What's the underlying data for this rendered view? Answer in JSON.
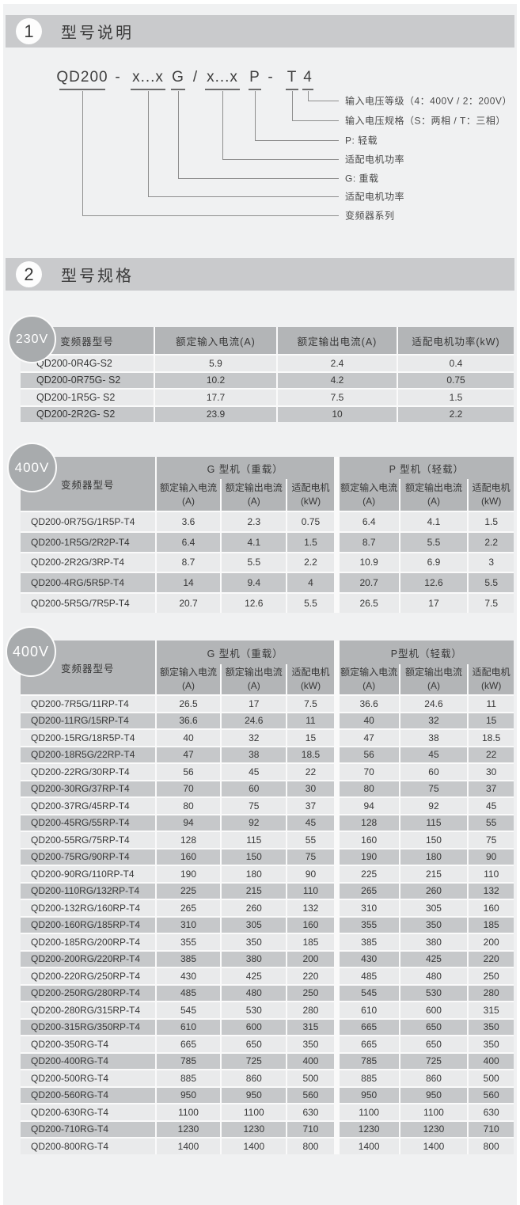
{
  "colors": {
    "background": "#f0f1f2",
    "section_bar": "#c9cacc",
    "table_header": "#b3b5b7",
    "row_light": "#e9eaeb",
    "row_dark": "#c6c8ca",
    "badge": "#a8abad",
    "separator": "#fafafa"
  },
  "sections": {
    "model_description": {
      "number": "1",
      "title": "型号说明"
    },
    "model_specs": {
      "number": "2",
      "title": "型号规格"
    }
  },
  "model_diagram": {
    "tokens": [
      "QD200",
      "-",
      "x...x",
      "G",
      "/",
      "x...x",
      "P",
      "-",
      "T",
      "4"
    ],
    "labels": [
      "输入电压等级（4：400V  /  2：200V）",
      "输入电压规格（S：两相  /  T：三相）",
      "P: 轻载",
      "适配电机功率",
      "G: 重载",
      "适配电机功率",
      "变频器系列"
    ]
  },
  "tables": {
    "t230": {
      "badge": "230V",
      "headers": [
        "变频器型号",
        "额定输入电流(A)",
        "额定输出电流(A)",
        "适配电机功率(kW)"
      ],
      "rows": [
        [
          "QD200-0R4G-S2",
          "5.9",
          "2.4",
          "0.4"
        ],
        [
          "QD200-0R75G- S2",
          "10.2",
          "4.2",
          "0.75"
        ],
        [
          "QD200-1R5G- S2",
          "17.7",
          "7.5",
          "1.5"
        ],
        [
          "QD200-2R2G- S2",
          "23.9",
          "10",
          "2.2"
        ]
      ]
    },
    "t400a": {
      "badge": "400V",
      "col1_header": "变频器型号",
      "groups": [
        {
          "label": "G 型机（重载）"
        },
        {
          "label": "P 型机（轻载）"
        }
      ],
      "sub_headers": [
        [
          "额定输入电流",
          "(A)"
        ],
        [
          "额定输出电流",
          "(A)"
        ],
        [
          "适配电机",
          "(kW)"
        ],
        [
          "额定输入电流",
          "(A)"
        ],
        [
          "额定输出电流",
          "(A)"
        ],
        [
          "适配电机",
          "(kW)"
        ]
      ],
      "rows": [
        [
          "QD200-0R75G/1R5P-T4",
          "3.6",
          "2.3",
          "0.75",
          "6.4",
          "4.1",
          "1.5"
        ],
        [
          "QD200-1R5G/2R2P-T4",
          "6.4",
          "4.1",
          "1.5",
          "8.7",
          "5.5",
          "2.2"
        ],
        [
          "QD200-2R2G/3RP-T4",
          "8.7",
          "5.5",
          "2.2",
          "10.9",
          "6.9",
          "3"
        ],
        [
          "QD200-4RG/5R5P-T4",
          "14",
          "9.4",
          "4",
          "20.7",
          "12.6",
          "5.5"
        ],
        [
          "QD200-5R5G/7R5P-T4",
          "20.7",
          "12.6",
          "5.5",
          "26.5",
          "17",
          "7.5"
        ]
      ]
    },
    "t400b": {
      "badge": "400V",
      "col1_header": "变频器型号",
      "groups": [
        {
          "label": "G 型机（重载）"
        },
        {
          "label": "P型机（轻载）"
        }
      ],
      "sub_headers": [
        [
          "额定输入电流",
          "(A)"
        ],
        [
          "额定输出电流",
          "(A)"
        ],
        [
          "适配电机",
          "(kW)"
        ],
        [
          "额定输入电流",
          "(A)"
        ],
        [
          "额定输出电流",
          "(A)"
        ],
        [
          "适配电机",
          "(kW)"
        ]
      ],
      "rows": [
        [
          "QD200-7R5G/11RP-T4",
          "26.5",
          "17",
          "7.5",
          "36.6",
          "24.6",
          "11"
        ],
        [
          "QD200-11RG/15RP-T4",
          "36.6",
          "24.6",
          "11",
          "40",
          "32",
          "15"
        ],
        [
          "QD200-15RG/18R5P-T4",
          "40",
          "32",
          "15",
          "47",
          "38",
          "18.5"
        ],
        [
          "QD200-18R5G/22RP-T4",
          "47",
          "38",
          "18.5",
          "56",
          "45",
          "22"
        ],
        [
          "QD200-22RG/30RP-T4",
          "56",
          "45",
          "22",
          "70",
          "60",
          "30"
        ],
        [
          "QD200-30RG/37RP-T4",
          "70",
          "60",
          "30",
          "80",
          "75",
          "37"
        ],
        [
          "QD200-37RG/45RP-T4",
          "80",
          "75",
          "37",
          "94",
          "92",
          "45"
        ],
        [
          "QD200-45RG/55RP-T4",
          "94",
          "92",
          "45",
          "128",
          "115",
          "55"
        ],
        [
          "QD200-55RG/75RP-T4",
          "128",
          "115",
          "55",
          "160",
          "150",
          "75"
        ],
        [
          "QD200-75RG/90RP-T4",
          "160",
          "150",
          "75",
          "190",
          "180",
          "90"
        ],
        [
          "QD200-90RG/110RP-T4",
          "190",
          "180",
          "90",
          "225",
          "215",
          "110"
        ],
        [
          "QD200-110RG/132RP-T4",
          "225",
          "215",
          "110",
          "265",
          "260",
          "132"
        ],
        [
          "QD200-132RG/160RP-T4",
          "265",
          "260",
          "132",
          "310",
          "305",
          "160"
        ],
        [
          "QD200-160RG/185RP-T4",
          "310",
          "305",
          "160",
          "355",
          "350",
          "185"
        ],
        [
          "QD200-185RG/200RP-T4",
          "355",
          "350",
          "185",
          "385",
          "380",
          "200"
        ],
        [
          "QD200-200RG/220RP-T4",
          "385",
          "380",
          "200",
          "430",
          "425",
          "220"
        ],
        [
          "QD200-220RG/250RP-T4",
          "430",
          "425",
          "220",
          "485",
          "480",
          "250"
        ],
        [
          "QD200-250RG/280RP-T4",
          "485",
          "480",
          "250",
          "545",
          "530",
          "280"
        ],
        [
          "QD200-280RG/315RP-T4",
          "545",
          "530",
          "280",
          "610",
          "600",
          "315"
        ],
        [
          "QD200-315RG/350RP-T4",
          "610",
          "600",
          "315",
          "665",
          "650",
          "350"
        ],
        [
          "QD200-350RG-T4",
          "665",
          "650",
          "350",
          "665",
          "650",
          "350"
        ],
        [
          "QD200-400RG-T4",
          "785",
          "725",
          "400",
          "785",
          "725",
          "400"
        ],
        [
          "QD200-500RG-T4",
          "885",
          "860",
          "500",
          "885",
          "860",
          "500"
        ],
        [
          "QD200-560RG-T4",
          "950",
          "950",
          "560",
          "950",
          "950",
          "560"
        ],
        [
          "QD200-630RG-T4",
          "1100",
          "1100",
          "630",
          "1100",
          "1100",
          "630"
        ],
        [
          "QD200-710RG-T4",
          "1230",
          "1230",
          "710",
          "1230",
          "1230",
          "710"
        ],
        [
          "QD200-800RG-T4",
          "1400",
          "1400",
          "800",
          "1400",
          "1400",
          "800"
        ]
      ]
    }
  }
}
